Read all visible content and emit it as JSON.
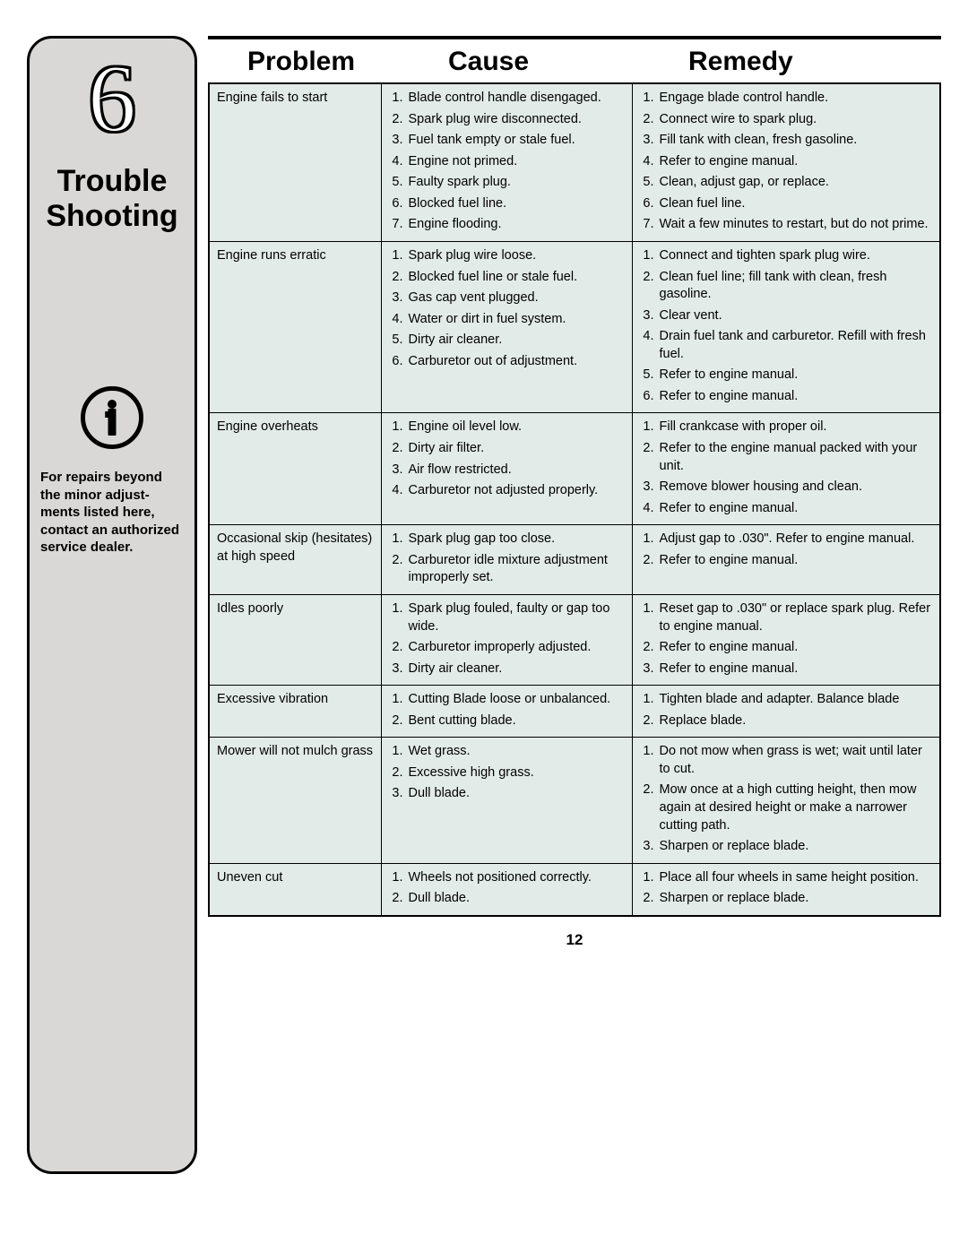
{
  "page_number": "12",
  "sidebar": {
    "chapter_number": "6",
    "chapter_title_line1": "Trouble",
    "chapter_title_line2": "Shooting",
    "dealer_note": "For repairs beyond the minor adjust­ments listed here, contact an authorized service dealer."
  },
  "headers": {
    "problem": "Problem",
    "cause": "Cause",
    "remedy": "Remedy"
  },
  "colors": {
    "sidebar_bg": "#d9d8d6",
    "table_bg": "#e2ebe8",
    "border": "#000000",
    "text": "#000000"
  },
  "rows": [
    {
      "problem": "Engine fails to start",
      "causes": [
        "Blade control handle disengaged.",
        "Spark plug wire disconnected.",
        "Fuel tank empty or stale fuel.",
        "Engine not primed.",
        "Faulty spark plug.",
        "Blocked fuel line.",
        "Engine flooding."
      ],
      "remedies": [
        "Engage blade control handle.",
        "Connect wire to spark plug.",
        "Fill tank with clean, fresh gasoline.",
        "Refer to engine manual.",
        "Clean, adjust gap, or replace.",
        "Clean fuel line.",
        "Wait a few minutes to restart, but do not prime."
      ]
    },
    {
      "problem": "Engine runs erratic",
      "causes": [
        "Spark plug wire loose.",
        "Blocked fuel line or stale fuel.",
        "Gas cap vent plugged.",
        "Water or dirt in fuel system.",
        "Dirty air cleaner.",
        "Carburetor out of adjustment."
      ],
      "remedies": [
        "Connect and tighten spark plug wire.",
        "Clean fuel line; fill tank with clean, fresh gasoline.",
        "Clear vent.",
        "Drain fuel tank and carburetor. Refill with fresh fuel.",
        "Refer to engine manual.",
        "Refer to engine manual."
      ]
    },
    {
      "problem": "Engine overheats",
      "causes": [
        "Engine oil level low.",
        "Dirty air filter.",
        "Air flow restricted.",
        "Carburetor not adjusted properly."
      ],
      "remedies": [
        "Fill crankcase with proper oil.",
        "Refer to the engine manual packed with your unit.",
        "Remove blower housing and clean.",
        "Refer to engine manual."
      ]
    },
    {
      "problem": "Occasional skip (hesitates) at high speed",
      "causes": [
        "Spark plug gap too close.",
        "Carburetor idle mixture adjustment improperly set."
      ],
      "remedies": [
        "Adjust gap to .030\". Refer to engine manual.",
        "Refer to engine manual."
      ]
    },
    {
      "problem": "Idles poorly",
      "causes": [
        "Spark plug fouled, faulty or gap too wide.",
        "Carburetor improperly adjusted.",
        "Dirty air cleaner."
      ],
      "remedies": [
        "Reset gap to .030\" or replace spark plug. Refer to engine manual.",
        "Refer to engine manual.",
        "Refer to engine manual."
      ]
    },
    {
      "problem": "Excessive vibration",
      "causes": [
        "Cutting Blade loose or unbalanced.",
        "Bent cutting blade."
      ],
      "remedies": [
        "Tighten blade and adapter. Balance blade",
        "Replace blade."
      ]
    },
    {
      "problem": "Mower will not mulch grass",
      "causes": [
        "Wet grass.",
        "Excessive high grass.",
        "Dull blade."
      ],
      "remedies": [
        "Do not mow when grass is wet; wait until later to cut.",
        "Mow once at a high cutting height, then mow again at desired height or make a narrower cutting path.",
        "Sharpen or replace blade."
      ]
    },
    {
      "problem": "Uneven cut",
      "causes": [
        "Wheels not positioned correctly.",
        "Dull blade."
      ],
      "remedies": [
        "Place all four wheels in same height position.",
        "Sharpen or replace blade."
      ]
    }
  ]
}
